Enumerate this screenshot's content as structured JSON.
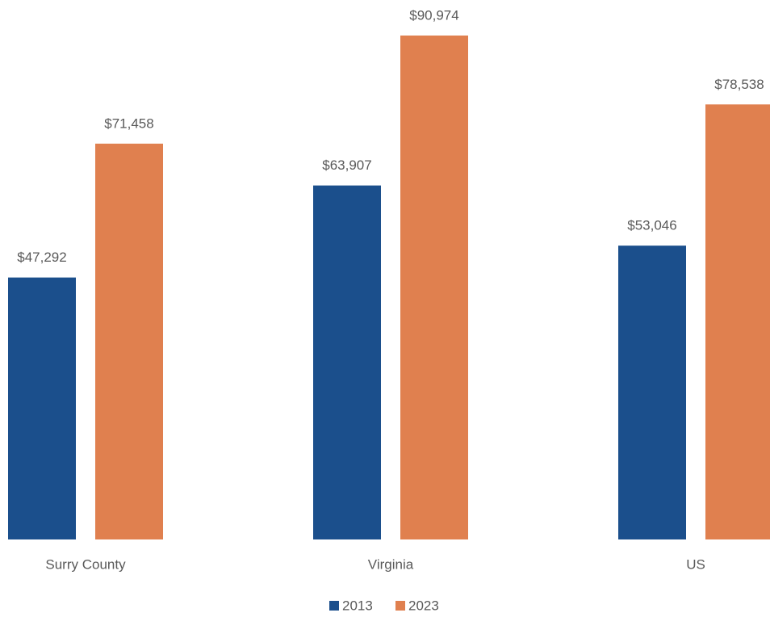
{
  "chart_data": {
    "type": "bar",
    "categories": [
      "Surry County",
      "Virginia",
      "US"
    ],
    "series": [
      {
        "name": "2013",
        "color": "#1b4f8c",
        "values": [
          47292,
          63907,
          53046
        ],
        "value_labels": [
          "$47,292",
          "$63,907",
          "$53,046"
        ]
      },
      {
        "name": "2023",
        "color": "#e0804f",
        "values": [
          71458,
          90974,
          78538
        ],
        "value_labels": [
          "$71,458",
          "$90,974",
          "$78,538"
        ]
      }
    ],
    "legend": "bottom"
  }
}
